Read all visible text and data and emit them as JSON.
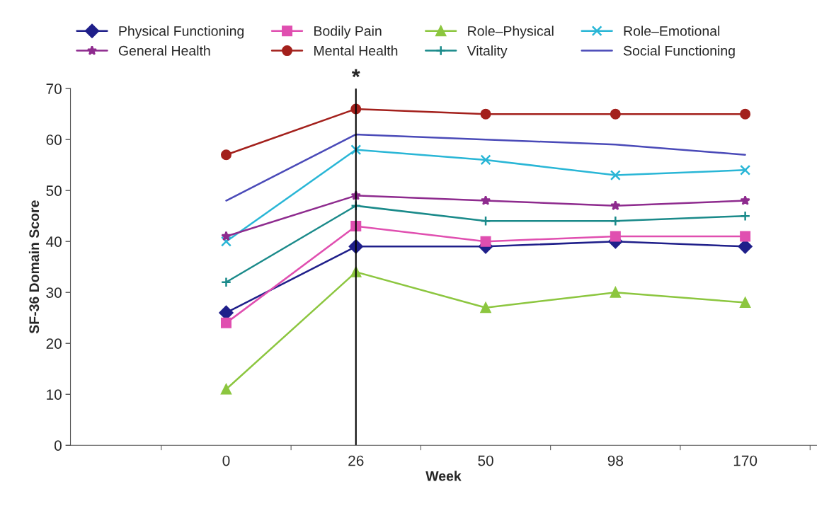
{
  "chart_data": {
    "type": "line",
    "xlabel": "Week",
    "ylabel": "SF-36 Domain Score",
    "categories": [
      "0",
      "26",
      "50",
      "98",
      "170"
    ],
    "series": [
      {
        "name": "Physical Functioning",
        "color": "#1f1f8a",
        "marker": "diamond",
        "values": [
          26,
          39,
          39,
          40,
          39
        ]
      },
      {
        "name": "Bodily Pain",
        "color": "#e04fb0",
        "marker": "square",
        "values": [
          24,
          43,
          40,
          41,
          41
        ]
      },
      {
        "name": "Role–Physical",
        "color": "#8cc63f",
        "marker": "triangle",
        "values": [
          11,
          34,
          27,
          30,
          28
        ]
      },
      {
        "name": "Role–Emotional",
        "color": "#29b6d6",
        "marker": "cross",
        "values": [
          40,
          58,
          56,
          53,
          54
        ]
      },
      {
        "name": "General Health",
        "color": "#8e2b8e",
        "marker": "star",
        "values": [
          41,
          49,
          48,
          47,
          48
        ]
      },
      {
        "name": "Mental Health",
        "color": "#a3201c",
        "marker": "circle",
        "values": [
          57,
          66,
          65,
          65,
          65
        ]
      },
      {
        "name": "Vitality",
        "color": "#1a8a8a",
        "marker": "plus",
        "values": [
          32,
          47,
          44,
          44,
          45
        ]
      },
      {
        "name": "Social Functioning",
        "color": "#4a4ab8",
        "marker": "none",
        "values": [
          48,
          61,
          60,
          59,
          57
        ]
      }
    ],
    "ylim": [
      0,
      70
    ],
    "yticks": [
      0,
      10,
      20,
      30,
      40,
      50,
      60,
      70
    ],
    "grid": false,
    "legend": "top",
    "ref_lines": [
      {
        "axis": "x",
        "value": "26",
        "label": "*",
        "color": "#000000"
      }
    ]
  }
}
